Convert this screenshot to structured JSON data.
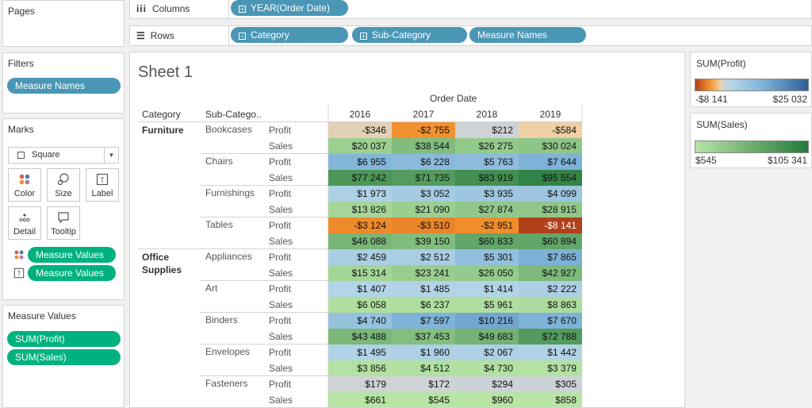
{
  "left_panel": {
    "pages_title": "Pages",
    "filters_title": "Filters",
    "filters": [
      {
        "label": "Measure Names"
      }
    ],
    "marks_title": "Marks",
    "mark_type": "Square",
    "mark_buttons": [
      {
        "label": "Color",
        "icon": "color-dots-icon"
      },
      {
        "label": "Size",
        "icon": "size-icon"
      },
      {
        "label": "Label",
        "icon": "label-icon"
      },
      {
        "label": "Detail",
        "icon": "detail-dots-icon"
      },
      {
        "label": "Tooltip",
        "icon": "tooltip-icon"
      }
    ],
    "mark_fields": [
      {
        "icon": "color-dots-icon",
        "label": "Measure Values"
      },
      {
        "icon": "label-icon",
        "label": "Measure Values"
      }
    ],
    "measure_values_title": "Measure Values",
    "measure_values": [
      {
        "label": "SUM(Profit)"
      },
      {
        "label": "SUM(Sales)"
      }
    ]
  },
  "shelves": {
    "columns_label": "Columns",
    "columns_icon": "columns-icon",
    "columns_pills": [
      {
        "label": "YEAR(Order Date)",
        "toggle": "+"
      }
    ],
    "rows_label": "Rows",
    "rows_icon": "rows-icon",
    "rows_pills": [
      {
        "label": "Category",
        "toggle": "−"
      },
      {
        "label": "Sub-Category",
        "toggle": "+"
      },
      {
        "label": "Measure Names",
        "toggle": ""
      }
    ]
  },
  "sheet": {
    "title": "Sheet 1",
    "column_group_header": "Order Date",
    "category_header": "Category",
    "subcategory_header": "Sub-Catego..",
    "years": [
      "2016",
      "2017",
      "2018",
      "2019"
    ],
    "categories": [
      {
        "label": "Furniture",
        "start_row": 0
      },
      {
        "label": "Office\nSupplies",
        "start_row": 8
      }
    ],
    "subcategories": [
      {
        "label": "Bookcases"
      },
      {
        "label": "Chairs"
      },
      {
        "label": "Furnishings"
      },
      {
        "label": "Tables"
      },
      {
        "label": "Appliances"
      },
      {
        "label": "Art"
      },
      {
        "label": "Binders"
      },
      {
        "label": "Envelopes"
      },
      {
        "label": "Fasteners"
      }
    ],
    "measure_labels": [
      "Profit",
      "Sales"
    ]
  },
  "chart_data": {
    "type": "heatmap",
    "title": "Sheet 1",
    "x_header": "Order Date",
    "years": [
      "2016",
      "2017",
      "2018",
      "2019"
    ],
    "rows": [
      {
        "category": "Furniture",
        "sub_category": "Bookcases",
        "measure": "Profit",
        "values": [
          -346,
          -2755,
          212,
          -584
        ],
        "labels": [
          "-$346",
          "-$2 755",
          "$212",
          "-$584"
        ]
      },
      {
        "category": "Furniture",
        "sub_category": "Bookcases",
        "measure": "Sales",
        "values": [
          20037,
          38544,
          26275,
          30024
        ],
        "labels": [
          "$20 037",
          "$38 544",
          "$26 275",
          "$30 024"
        ]
      },
      {
        "category": "Furniture",
        "sub_category": "Chairs",
        "measure": "Profit",
        "values": [
          6955,
          6228,
          5763,
          7644
        ],
        "labels": [
          "$6 955",
          "$6 228",
          "$5 763",
          "$7 644"
        ]
      },
      {
        "category": "Furniture",
        "sub_category": "Chairs",
        "measure": "Sales",
        "values": [
          77242,
          71735,
          83919,
          95554
        ],
        "labels": [
          "$77 242",
          "$71 735",
          "$83 919",
          "$95 554"
        ]
      },
      {
        "category": "Furniture",
        "sub_category": "Furnishings",
        "measure": "Profit",
        "values": [
          1973,
          3052,
          3935,
          4099
        ],
        "labels": [
          "$1 973",
          "$3 052",
          "$3 935",
          "$4 099"
        ]
      },
      {
        "category": "Furniture",
        "sub_category": "Furnishings",
        "measure": "Sales",
        "values": [
          13826,
          21090,
          27874,
          28915
        ],
        "labels": [
          "$13 826",
          "$21 090",
          "$27 874",
          "$28 915"
        ]
      },
      {
        "category": "Furniture",
        "sub_category": "Tables",
        "measure": "Profit",
        "values": [
          -3124,
          -3510,
          -2951,
          -8141
        ],
        "labels": [
          "-$3 124",
          "-$3 510",
          "-$2 951",
          "-$8 141"
        ]
      },
      {
        "category": "Furniture",
        "sub_category": "Tables",
        "measure": "Sales",
        "values": [
          46088,
          39150,
          60833,
          60894
        ],
        "labels": [
          "$46 088",
          "$39 150",
          "$60 833",
          "$60 894"
        ]
      },
      {
        "category": "Office Supplies",
        "sub_category": "Appliances",
        "measure": "Profit",
        "values": [
          2459,
          2512,
          5301,
          7865
        ],
        "labels": [
          "$2 459",
          "$2 512",
          "$5 301",
          "$7 865"
        ]
      },
      {
        "category": "Office Supplies",
        "sub_category": "Appliances",
        "measure": "Sales",
        "values": [
          15314,
          23241,
          26050,
          42927
        ],
        "labels": [
          "$15 314",
          "$23 241",
          "$26 050",
          "$42 927"
        ]
      },
      {
        "category": "Office Supplies",
        "sub_category": "Art",
        "measure": "Profit",
        "values": [
          1407,
          1485,
          1414,
          2222
        ],
        "labels": [
          "$1 407",
          "$1 485",
          "$1 414",
          "$2 222"
        ]
      },
      {
        "category": "Office Supplies",
        "sub_category": "Art",
        "measure": "Sales",
        "values": [
          6058,
          6237,
          5961,
          8863
        ],
        "labels": [
          "$6 058",
          "$6 237",
          "$5 961",
          "$8 863"
        ]
      },
      {
        "category": "Office Supplies",
        "sub_category": "Binders",
        "measure": "Profit",
        "values": [
          4740,
          7597,
          10216,
          7670
        ],
        "labels": [
          "$4 740",
          "$7 597",
          "$10 216",
          "$7 670"
        ]
      },
      {
        "category": "Office Supplies",
        "sub_category": "Binders",
        "measure": "Sales",
        "values": [
          43488,
          37453,
          49683,
          72788
        ],
        "labels": [
          "$43 488",
          "$37 453",
          "$49 683",
          "$72 788"
        ]
      },
      {
        "category": "Office Supplies",
        "sub_category": "Envelopes",
        "measure": "Profit",
        "values": [
          1495,
          1960,
          2067,
          1442
        ],
        "labels": [
          "$1 495",
          "$1 960",
          "$2 067",
          "$1 442"
        ]
      },
      {
        "category": "Office Supplies",
        "sub_category": "Envelopes",
        "measure": "Sales",
        "values": [
          3856,
          4512,
          4730,
          3379
        ],
        "labels": [
          "$3 856",
          "$4 512",
          "$4 730",
          "$3 379"
        ]
      },
      {
        "category": "Office Supplies",
        "sub_category": "Fasteners",
        "measure": "Profit",
        "values": [
          179,
          172,
          294,
          305
        ],
        "labels": [
          "$179",
          "$172",
          "$294",
          "$305"
        ]
      },
      {
        "category": "Office Supplies",
        "sub_category": "Fasteners",
        "measure": "Sales",
        "values": [
          661,
          545,
          960,
          858
        ],
        "labels": [
          "$661",
          "$545",
          "$960",
          "$858"
        ]
      }
    ]
  },
  "legends": {
    "profit": {
      "title": "SUM(Profit)",
      "min_label": "-$8 141",
      "max_label": "$25 032",
      "min": -8141,
      "max": 25032,
      "colors": {
        "neg_strong": "#b0411b",
        "neg_mid": "#f28e2b",
        "neg_light": "#f2cf9e",
        "zero": "#d3d3d3",
        "pos_light": "#b4d4e6",
        "pos_mid": "#7fb3d8",
        "pos_strong": "#2c5f97"
      }
    },
    "sales": {
      "title": "SUM(Sales)",
      "min_label": "$545",
      "max_label": "$105 341",
      "min": 545,
      "max": 105341,
      "colors": {
        "light": "#b8e4a5",
        "strong": "#24793c"
      }
    }
  }
}
